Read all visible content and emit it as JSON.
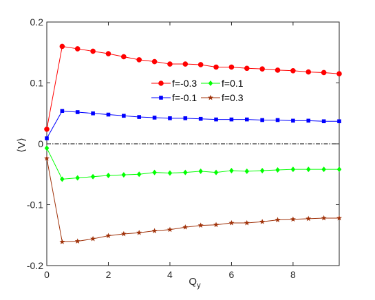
{
  "chart_data": {
    "type": "line",
    "title": "",
    "xlabel": "Q",
    "xlabel_sub": "y",
    "ylabel": "⟨V⟩",
    "xlim": [
      0,
      9.5
    ],
    "ylim": [
      -0.2,
      0.2
    ],
    "xticks": [
      0,
      2,
      4,
      6,
      8
    ],
    "xtick_labels": [
      "0",
      "2",
      "4",
      "6",
      "8"
    ],
    "yticks": [
      -0.2,
      -0.1,
      0,
      0.1,
      0.2
    ],
    "ytick_labels": [
      "-0.2",
      "-0.1",
      "0",
      "0.1",
      "0.2"
    ],
    "grid": false,
    "legend_position": "upper-middle",
    "reference_line": {
      "y": 0,
      "style": "dash-dot",
      "color": "#000000"
    },
    "x": [
      0,
      0.5,
      1,
      1.5,
      2,
      2.5,
      3,
      3.5,
      4,
      4.5,
      5,
      5.5,
      6,
      6.5,
      7,
      7.5,
      8,
      8.5,
      9,
      9.5
    ],
    "series": [
      {
        "name": "f=-0.3",
        "color": "#ff0000",
        "marker": "circle",
        "values": [
          0.024,
          0.16,
          0.156,
          0.152,
          0.148,
          0.143,
          0.138,
          0.135,
          0.131,
          0.131,
          0.13,
          0.126,
          0.126,
          0.124,
          0.123,
          0.121,
          0.12,
          0.118,
          0.117,
          0.115
        ]
      },
      {
        "name": "f=-0.1",
        "color": "#0000ff",
        "marker": "square",
        "values": [
          0.009,
          0.054,
          0.052,
          0.05,
          0.048,
          0.046,
          0.044,
          0.043,
          0.042,
          0.042,
          0.041,
          0.04,
          0.04,
          0.04,
          0.039,
          0.039,
          0.038,
          0.038,
          0.037,
          0.037
        ]
      },
      {
        "name": "f=0.1",
        "color": "#00ff00",
        "marker": "diamond",
        "values": [
          -0.007,
          -0.058,
          -0.056,
          -0.054,
          -0.052,
          -0.051,
          -0.05,
          -0.047,
          -0.048,
          -0.047,
          -0.045,
          -0.047,
          -0.044,
          -0.045,
          -0.044,
          -0.043,
          -0.042,
          -0.042,
          -0.042,
          -0.042
        ]
      },
      {
        "name": "f=0.3",
        "color": "#a0320a",
        "marker": "star",
        "values": [
          -0.024,
          -0.161,
          -0.16,
          -0.156,
          -0.151,
          -0.148,
          -0.146,
          -0.143,
          -0.141,
          -0.137,
          -0.134,
          -0.133,
          -0.13,
          -0.13,
          -0.128,
          -0.125,
          -0.124,
          -0.123,
          -0.122,
          -0.122
        ]
      }
    ]
  }
}
